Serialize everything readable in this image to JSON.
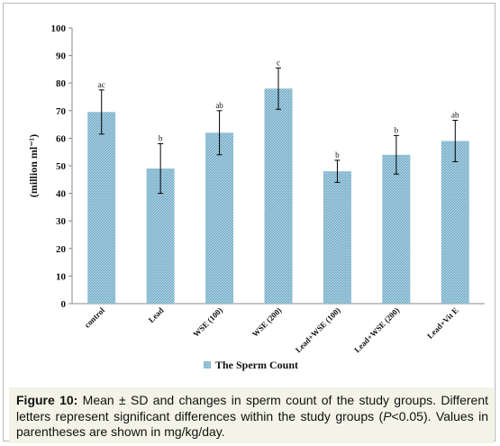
{
  "chart_data": {
    "type": "bar",
    "categories": [
      "control",
      "Lead",
      "WSE (100)",
      "WSE (200)",
      "Lead+WSE (100)",
      "Lead+WSE (200)",
      "Lead+Vit E"
    ],
    "series": [
      {
        "name": "The Sperm Count",
        "values": [
          69.5,
          49,
          62,
          78,
          48,
          54,
          59
        ],
        "error": [
          8,
          9,
          8,
          7.5,
          4,
          7,
          7.5
        ],
        "labels": [
          "ac",
          "b",
          "ab",
          "c",
          "b",
          "b",
          "ab"
        ]
      }
    ],
    "ylabel": "(million ml⁻¹)",
    "ylim": [
      0,
      100
    ],
    "yticks": [
      0,
      10,
      20,
      30,
      40,
      50,
      60,
      70,
      80,
      90,
      100
    ],
    "grid": false,
    "legend_position": "bottom-center",
    "colors": {
      "bar_fill": "#aad2e4",
      "bar_hatch": "#6fa5c1",
      "error_bar": "#000000",
      "axis": "#888888"
    }
  },
  "caption": {
    "label": "Figure 10:",
    "text_before_p": " Mean ± SD and changes in sperm count of the study groups. Different letters represent significant differences within the study groups (",
    "p_symbol": "P",
    "text_after_p": "<0.05). Values in parentheses are shown in mg/kg/day."
  }
}
